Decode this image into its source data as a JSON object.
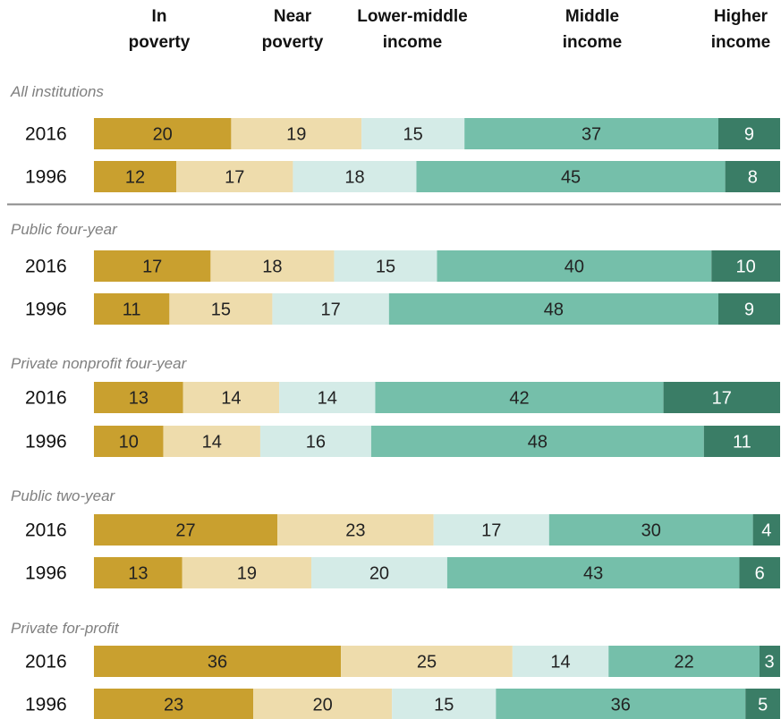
{
  "chart_data": {
    "type": "bar",
    "stacked": true,
    "orientation": "horizontal",
    "unit": "percent",
    "categories": [
      "In poverty",
      "Near poverty",
      "Lower-middle income",
      "Middle income",
      "Higher income"
    ],
    "category_headers": [
      [
        "In",
        "poverty"
      ],
      [
        "Near",
        "poverty"
      ],
      [
        "Lower-middle",
        "income"
      ],
      [
        "Middle",
        "income"
      ],
      [
        "Higher",
        "income"
      ]
    ],
    "colors": [
      "#c9a02f",
      "#eedcac",
      "#d4ebe7",
      "#75bfaa",
      "#3a7d66"
    ],
    "label_colors": [
      "#222222",
      "#222222",
      "#222222",
      "#222222",
      "#ffffff"
    ],
    "groups": [
      {
        "name": "All institutions",
        "rows": [
          {
            "year": "2016",
            "values": [
              20,
              19,
              15,
              37,
              9
            ]
          },
          {
            "year": "1996",
            "values": [
              12,
              17,
              18,
              45,
              8
            ]
          }
        ]
      },
      {
        "name": "Public four-year",
        "rows": [
          {
            "year": "2016",
            "values": [
              17,
              18,
              15,
              40,
              10
            ]
          },
          {
            "year": "1996",
            "values": [
              11,
              15,
              17,
              48,
              9
            ]
          }
        ]
      },
      {
        "name": "Private nonprofit four-year",
        "rows": [
          {
            "year": "2016",
            "values": [
              13,
              14,
              14,
              42,
              17
            ]
          },
          {
            "year": "1996",
            "values": [
              10,
              14,
              16,
              48,
              11
            ]
          }
        ]
      },
      {
        "name": "Public two-year",
        "rows": [
          {
            "year": "2016",
            "values": [
              27,
              23,
              17,
              30,
              4
            ]
          },
          {
            "year": "1996",
            "values": [
              13,
              19,
              20,
              43,
              6
            ]
          }
        ]
      },
      {
        "name": "Private for-profit",
        "rows": [
          {
            "year": "2016",
            "values": [
              36,
              25,
              14,
              22,
              3
            ]
          },
          {
            "year": "1996",
            "values": [
              23,
              20,
              15,
              36,
              5
            ]
          }
        ]
      }
    ],
    "legend": "column headers at top"
  }
}
